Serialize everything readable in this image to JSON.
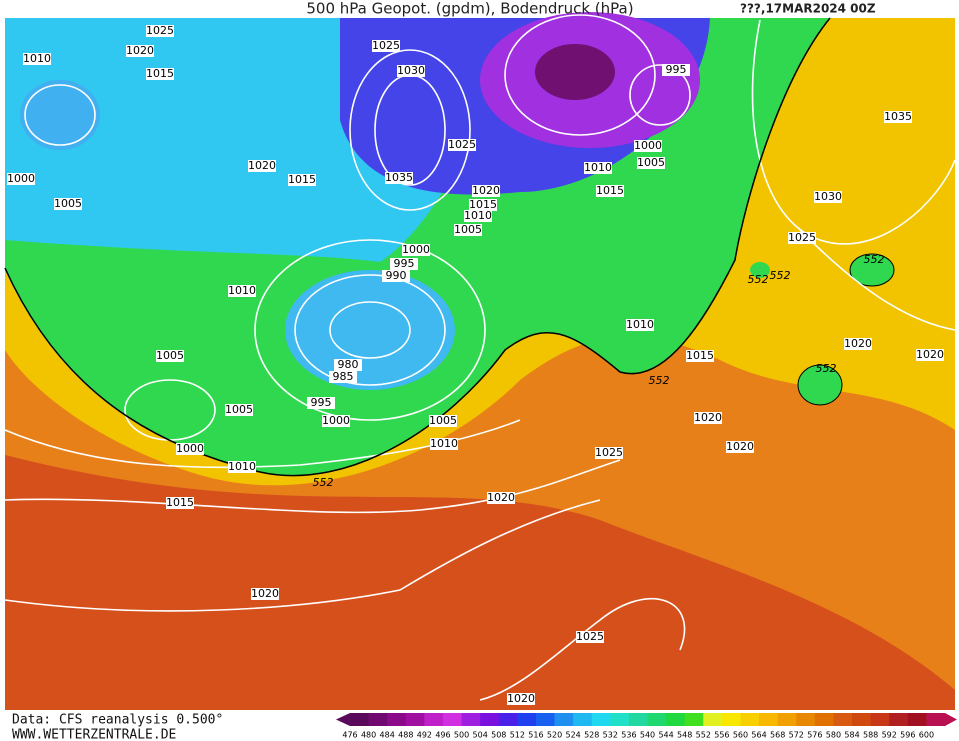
{
  "header": {
    "title": "500 hPa Geopot. (gpdm), Bodendruck (hPa)",
    "date": "???,17MAR2024 00Z"
  },
  "map": {
    "isobar_labels": [
      "1025",
      "1020",
      "1015",
      "1010",
      "1000",
      "1005",
      "1020",
      "1015",
      "1025",
      "1030",
      "1025",
      "1035",
      "1020",
      "1015",
      "1010",
      "1005",
      "1000",
      "995",
      "990",
      "980",
      "985",
      "995",
      "1000",
      "1005",
      "1005",
      "1010",
      "1000",
      "1010",
      "1015",
      "1010",
      "1005",
      "995",
      "1000",
      "1005",
      "1010",
      "1015",
      "1010",
      "1015",
      "1035",
      "1030",
      "1025",
      "1020",
      "1020",
      "1020",
      "1020",
      "1025",
      "1020",
      "1020",
      "1025",
      "1020"
    ],
    "contour_labels": [
      "552",
      "552",
      "552",
      "552",
      "552",
      "552"
    ]
  },
  "footer": {
    "source": "Data: CFS reanalysis 0.500°",
    "site": "WWW.WETTERZENTRALE.DE"
  },
  "colorbar": {
    "levels": [
      476,
      480,
      484,
      488,
      492,
      496,
      500,
      504,
      508,
      512,
      516,
      520,
      524,
      528,
      532,
      536,
      540,
      544,
      548,
      552,
      556,
      560,
      564,
      568,
      572,
      576,
      580,
      584,
      588,
      592,
      596,
      600
    ],
    "colors": [
      "#5a0a5a",
      "#700a70",
      "#8a0a8a",
      "#a010a0",
      "#c020c8",
      "#d030e0",
      "#a020e0",
      "#7a10e0",
      "#4a20e8",
      "#2040f0",
      "#1a60f0",
      "#2090f0",
      "#20b8f0",
      "#20d8f0",
      "#20e0c8",
      "#20d8a0",
      "#20d870",
      "#20d840",
      "#40e020",
      "#e0f020",
      "#f8e800",
      "#f8d000",
      "#f8b800",
      "#f0a000",
      "#e88800",
      "#e07000",
      "#d85a10",
      "#d04a10",
      "#c83818",
      "#b02020",
      "#a01020",
      "#b81050"
    ]
  }
}
